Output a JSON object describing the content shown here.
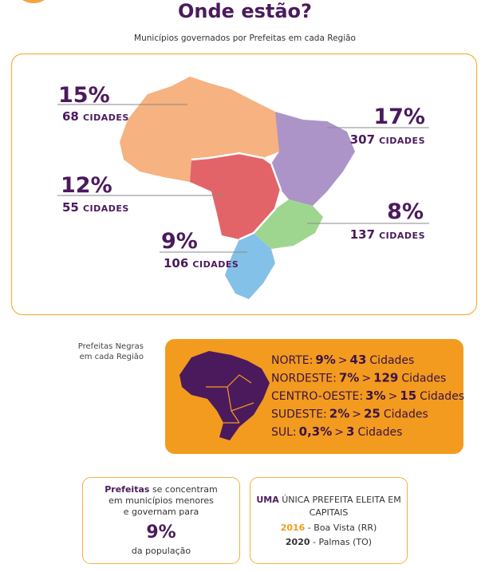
{
  "title": "Onde estão?",
  "subtitle": "Municípios governados por Prefeitas em cada Região",
  "regions": [
    {
      "percent": "15%",
      "cities": "68",
      "label": "CIDADES"
    },
    {
      "percent": "17%",
      "cities": "307",
      "label": "CIDADES"
    },
    {
      "percent": "12%",
      "cities": "55",
      "label": "CIDADES"
    },
    {
      "percent": "8%",
      "cities": "137",
      "label": "CIDADES"
    },
    {
      "percent": "9%",
      "cities": "106",
      "label": "CIDADES"
    }
  ],
  "black_mayors": {
    "caption": [
      "Prefeitas Negras",
      "em cada Região"
    ],
    "rows": [
      {
        "region": "NORTE:",
        "percent": "9%",
        "sep": ">",
        "count": "43",
        "unit": "Cidades"
      },
      {
        "region": "NORDESTE:",
        "percent": "7%",
        "sep": ">",
        "count": "129",
        "unit": "Cidades"
      },
      {
        "region": "CENTRO-OESTE:",
        "percent": "3%",
        "sep": ">",
        "count": "15",
        "unit": "Cidades"
      },
      {
        "region": "SUDESTE:",
        "percent": "2%",
        "sep": ">",
        "count": "25",
        "unit": "Cidades"
      },
      {
        "region": "SUL:",
        "percent": "0,3%",
        "sep": ">",
        "count": "3",
        "unit": "Cidades"
      }
    ]
  },
  "concentration": {
    "lead": "Prefeitas",
    "lines": [
      "se concentram",
      "em municípios menores",
      "e governam para"
    ],
    "percent": "9%",
    "tail": "da população"
  },
  "capitals": {
    "lead": "UMA",
    "lines": [
      "ÚNICA PREFEITA ELEITA EM",
      "CAPITAIS"
    ],
    "entries": [
      {
        "year": "2016",
        "city": "- Boa Vista (RR)"
      },
      {
        "year": "2020",
        "city": "- Palmas (TO)"
      }
    ]
  }
}
